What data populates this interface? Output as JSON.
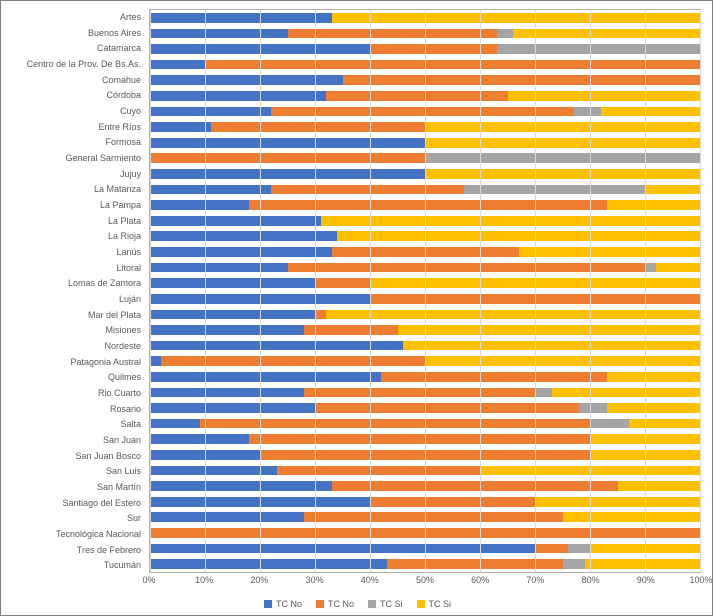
{
  "chart": {
    "type": "stacked-bar-horizontal-100pct",
    "background_color": "#ffffff",
    "border_color": "#808080",
    "grid_color": "#d9d9d9",
    "plot_border_color": "#b0b0b0",
    "label_fontsize": 9,
    "label_color": "#595959",
    "xlim": [
      0,
      100
    ],
    "xtick_step": 10,
    "xticks": [
      "0%",
      "10%",
      "20%",
      "30%",
      "40%",
      "50%",
      "60%",
      "70%",
      "80%",
      "90%",
      "100%"
    ],
    "series": [
      {
        "name": "TC No",
        "color": "#4472c4"
      },
      {
        "name": "TC No",
        "color": "#ed7d31"
      },
      {
        "name": "TC Si",
        "color": "#a5a5a5"
      },
      {
        "name": "TC Si",
        "color": "#ffc000"
      }
    ],
    "categories": [
      "Artes",
      "Buenos Aires",
      "Catamarca",
      "Centro de la Prov. De Bs.As.",
      "Comahue",
      "Córdoba",
      "Cuyo",
      "Entre Ríos",
      "Formosa",
      "General Sarmiento",
      "Jujuy",
      "La Matanza",
      "La Pampa",
      "La Plata",
      "La Rioja",
      "Lanús",
      "Litoral",
      "Lomas de Zamora",
      "Luján",
      "Mar del Plata",
      "Misiones",
      "Nordeste",
      "Patagonia Austral",
      "Quilmes",
      "Rio Cuarto",
      "Rosario",
      "Salta",
      "San Juan",
      "San Juan Bosco",
      "San Luis",
      "San Martín",
      "Santiago del Estero",
      "Sur",
      "Tecnológica Nacional",
      "Tres de Febrero",
      "Tucumán"
    ],
    "values": [
      [
        33,
        0,
        0,
        67
      ],
      [
        25,
        38,
        3,
        34
      ],
      [
        40,
        23,
        37,
        0
      ],
      [
        10,
        90,
        0,
        0
      ],
      [
        35,
        65,
        0,
        0
      ],
      [
        32,
        33,
        0,
        35
      ],
      [
        22,
        55,
        5,
        18
      ],
      [
        11,
        39,
        0,
        50
      ],
      [
        50,
        0,
        0,
        50
      ],
      [
        0,
        50,
        50,
        0
      ],
      [
        50,
        0,
        0,
        50
      ],
      [
        22,
        35,
        33,
        10
      ],
      [
        18,
        65,
        0,
        17
      ],
      [
        31,
        0,
        0,
        69
      ],
      [
        34,
        0,
        0,
        66
      ],
      [
        33,
        34,
        0,
        33
      ],
      [
        25,
        65,
        2,
        8
      ],
      [
        30,
        10,
        0,
        60
      ],
      [
        40,
        60,
        0,
        0
      ],
      [
        30,
        2,
        0,
        68
      ],
      [
        28,
        17,
        0,
        55
      ],
      [
        46,
        0,
        0,
        54
      ],
      [
        2,
        48,
        0,
        50
      ],
      [
        42,
        41,
        0,
        17
      ],
      [
        28,
        42,
        3,
        27
      ],
      [
        30,
        48,
        5,
        17
      ],
      [
        9,
        71,
        7,
        13
      ],
      [
        18,
        62,
        0,
        20
      ],
      [
        20,
        60,
        0,
        20
      ],
      [
        23,
        37,
        0,
        40
      ],
      [
        33,
        52,
        0,
        15
      ],
      [
        40,
        30,
        0,
        30
      ],
      [
        28,
        47,
        0,
        25
      ],
      [
        0,
        100,
        0,
        0
      ],
      [
        70,
        6,
        4,
        20
      ],
      [
        43,
        32,
        4,
        21
      ]
    ]
  }
}
